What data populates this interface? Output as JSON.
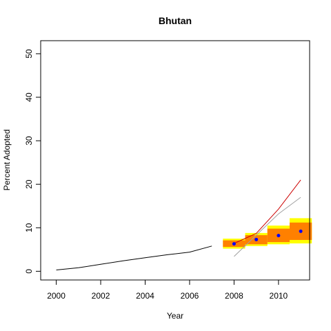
{
  "chart_data": {
    "type": "line",
    "title": "Bhutan",
    "xlabel": "Year",
    "ylabel": "Percent Adopted",
    "xlim": [
      1999.3,
      2011.4
    ],
    "ylim": [
      -2,
      53
    ],
    "x_ticks": [
      2000,
      2002,
      2004,
      2006,
      2008,
      2010
    ],
    "y_ticks": [
      0,
      10,
      20,
      30,
      40,
      50
    ],
    "grid": false,
    "legend": "none",
    "series": [
      {
        "role": "observed",
        "color": "#000000",
        "points": [
          [
            2000,
            0.3
          ],
          [
            2001,
            0.8
          ],
          [
            2002,
            1.6
          ],
          [
            2003,
            2.4
          ],
          [
            2004,
            3.1
          ],
          [
            2005,
            3.8
          ],
          [
            2006,
            4.4
          ],
          [
            2007,
            5.8
          ]
        ]
      },
      {
        "role": "trend-red",
        "color": "#cc0000",
        "points": [
          [
            2008,
            6.4
          ],
          [
            2009,
            8.7
          ],
          [
            2010,
            14.3
          ],
          [
            2011,
            21.0
          ]
        ]
      },
      {
        "role": "trend-gray",
        "color": "#a0a0a0",
        "points": [
          [
            2008,
            3.4
          ],
          [
            2009,
            8.3
          ],
          [
            2010,
            13.2
          ],
          [
            2011,
            17.0
          ]
        ]
      }
    ],
    "forecast": [
      {
        "x": 2008,
        "mean": 6.3,
        "outer": [
          5.2,
          7.5
        ],
        "inner": [
          5.6,
          7.1
        ]
      },
      {
        "x": 2009,
        "mean": 7.3,
        "outer": [
          5.8,
          8.8
        ],
        "inner": [
          6.2,
          8.3
        ]
      },
      {
        "x": 2010,
        "mean": 8.2,
        "outer": [
          6.2,
          10.5
        ],
        "inner": [
          6.7,
          9.8
        ]
      },
      {
        "x": 2011,
        "mean": 9.2,
        "outer": [
          6.4,
          12.2
        ],
        "inner": [
          7.2,
          11.2
        ]
      }
    ],
    "colors": {
      "outer_band": "#ffff00",
      "inner_band": "#ff8000",
      "mean_point": "#0000ff"
    }
  }
}
